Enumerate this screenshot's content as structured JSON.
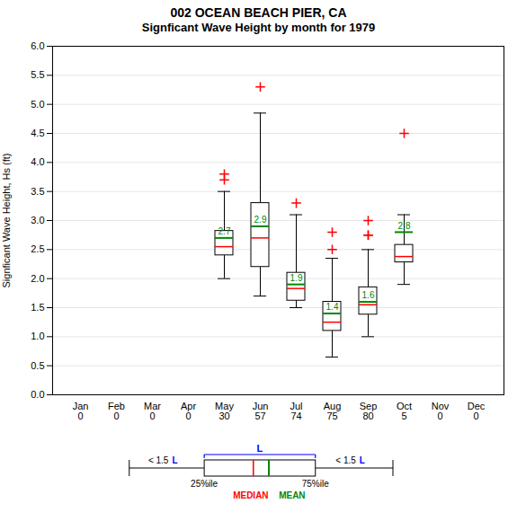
{
  "chart_data": {
    "type": "box",
    "title": "002   OCEAN BEACH PIER, CA",
    "subtitle": "Signficant Wave Height by month for 1979",
    "y_label": "Signficant Wave Height, Hs (ft)",
    "categories": [
      "Jan",
      "Feb",
      "Mar",
      "Apr",
      "May",
      "Jun",
      "Jul",
      "Aug",
      "Sep",
      "Oct",
      "Nov",
      "Dec"
    ],
    "counts": [
      0,
      0,
      0,
      0,
      30,
      57,
      74,
      75,
      80,
      5,
      0,
      0
    ],
    "ylim": [
      0.0,
      6.0
    ],
    "yticks": [
      {
        "value": 0.0,
        "label": "0.0"
      },
      0.5,
      {
        "value": 1.0,
        "label": "1.0"
      },
      1.5,
      {
        "value": 2.0,
        "label": "2.0"
      },
      2.5,
      {
        "value": 3.0,
        "label": "3.0"
      },
      3.5,
      {
        "value": 4.0,
        "label": "4.0"
      },
      4.5,
      {
        "value": 5.0,
        "label": "5.0"
      },
      5.5,
      {
        "value": 6.0,
        "label": "6.0"
      }
    ],
    "grid": true,
    "data_labels": true,
    "boxes": [
      {
        "category": "May",
        "q1": 2.4,
        "median": 2.55,
        "mean": 2.7,
        "q3": 2.82,
        "whislo": 2.0,
        "whishi": 3.5,
        "fliers": [
          3.8,
          3.7
        ]
      },
      {
        "category": "Jun",
        "q1": 2.2,
        "median": 2.7,
        "mean": 2.9,
        "q3": 3.3,
        "whislo": 1.7,
        "whishi": 4.85,
        "fliers": [
          5.3
        ]
      },
      {
        "category": "Jul",
        "q1": 1.62,
        "median": 1.83,
        "mean": 1.9,
        "q3": 2.1,
        "whislo": 1.5,
        "whishi": 3.1,
        "fliers": [
          3.3
        ]
      },
      {
        "category": "Aug",
        "q1": 1.1,
        "median": 1.25,
        "mean": 1.4,
        "q3": 1.6,
        "whislo": 0.65,
        "whishi": 2.35,
        "fliers": [
          2.8,
          2.5
        ]
      },
      {
        "category": "Sep",
        "q1": 1.38,
        "median": 1.55,
        "mean": 1.6,
        "q3": 1.85,
        "whislo": 1.0,
        "whishi": 2.5,
        "fliers": [
          3.0,
          2.75,
          2.75
        ]
      },
      {
        "category": "Oct",
        "q1": 2.28,
        "median": 2.38,
        "mean": 2.8,
        "q3": 2.58,
        "whislo": 1.9,
        "whishi": 3.1,
        "fliers": [
          4.5
        ]
      }
    ],
    "median_color": "#ff0000",
    "mean_color": "#008800",
    "flier_color": "#ff0000",
    "key": {
      "whisker_text": "< 1.5",
      "span_text": "L",
      "span_color": "#0000ff",
      "q1_label": "25%ile",
      "q3_label": "75%ile",
      "median_label": "MEDIAN",
      "mean_label": "MEAN"
    }
  }
}
